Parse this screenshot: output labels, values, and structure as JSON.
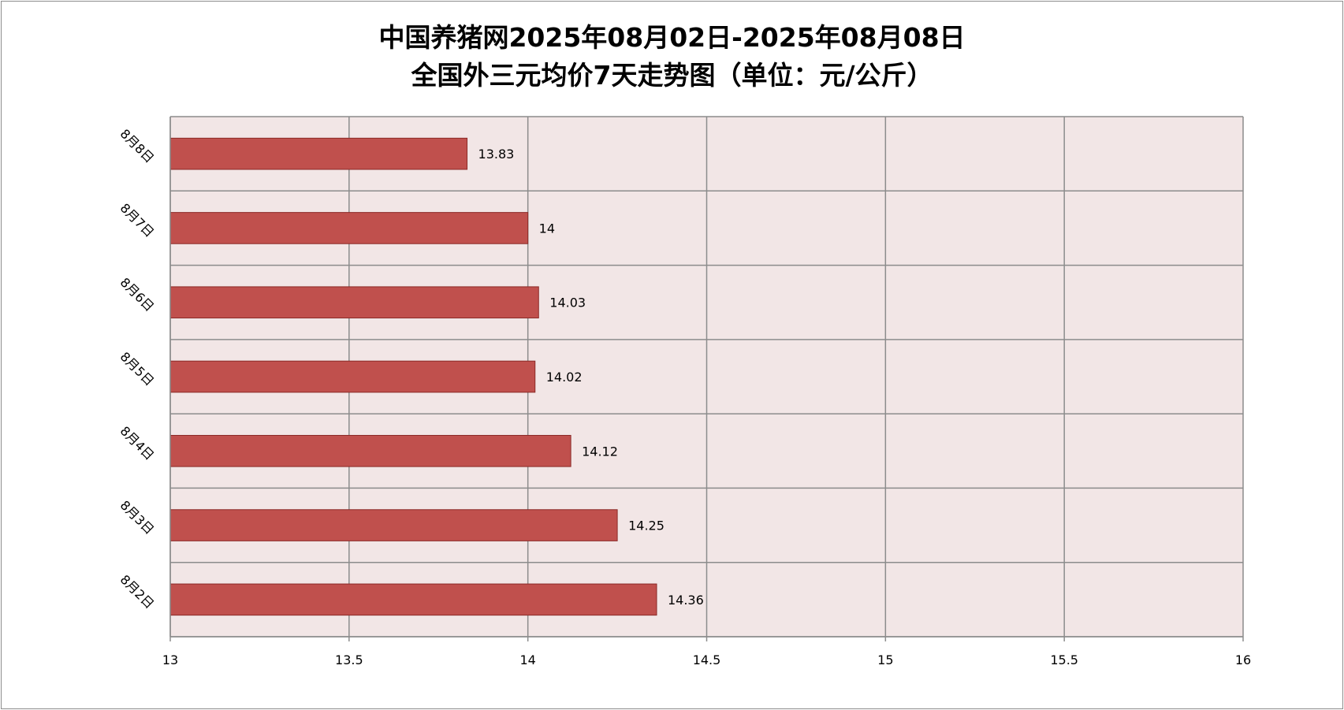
{
  "chart_data": {
    "type": "bar",
    "orientation": "horizontal",
    "title_lines": [
      "中国养猪网2025年08月02日-2025年08月08日",
      "全国外三元均价7天走势图（单位：元/公斤）"
    ],
    "categories": [
      "8月8日",
      "8月7日",
      "8月6日",
      "8月5日",
      "8月4日",
      "8月3日",
      "8月2日"
    ],
    "values": [
      13.83,
      14,
      14.03,
      14.02,
      14.12,
      14.25,
      14.36
    ],
    "data_labels": [
      "13.83",
      "14",
      "14.03",
      "14.02",
      "14.12",
      "14.25",
      "14.36"
    ],
    "xlim": [
      13,
      16
    ],
    "x_ticks": [
      "13",
      "13.5",
      "14",
      "14.5",
      "15",
      "15.5",
      "16"
    ],
    "grid": true,
    "legend": "none",
    "colors": {
      "bar_fill": "#c0504d",
      "bar_stroke": "#8b2a27",
      "plot_background": "#f2e6e6",
      "grid": "#8c8c8c"
    }
  }
}
